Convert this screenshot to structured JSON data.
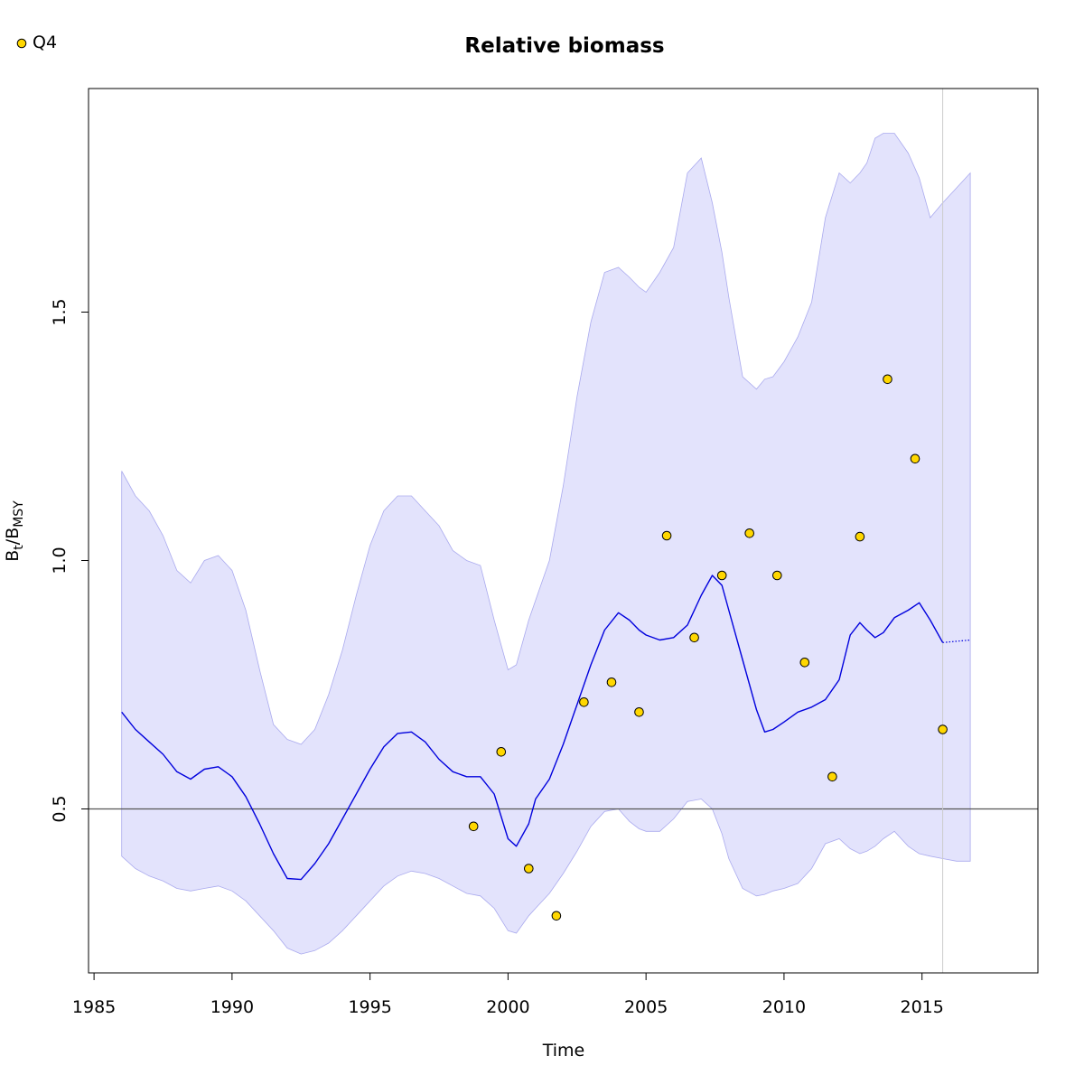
{
  "chart_data": {
    "type": "line",
    "title": "Relative biomass",
    "xlabel": "Time",
    "ylabel": {
      "main": "B",
      "sub1": "t",
      "sep": "/B",
      "sub2": "MSY"
    },
    "xlim": [
      1984.8,
      2019.2
    ],
    "ylim": [
      0.17,
      1.95
    ],
    "x_ticks": [
      1985,
      1990,
      1995,
      2000,
      2005,
      2010,
      2015
    ],
    "y_ticks": [
      0.5,
      1.0,
      1.5
    ],
    "y_tick_labels": [
      "0.5",
      "1.0",
      "1.5"
    ],
    "reference_line": 0.5,
    "forecast_start": 2015.75,
    "grid": false,
    "legend": {
      "position": "top-left",
      "entries": [
        "Q4"
      ]
    },
    "colors": {
      "line": "#0000dd",
      "band": "#e3e3fc",
      "band_edge": "#aaaaee",
      "points": "#ffd700",
      "ref_line": "#555555",
      "vline": "#cccccc"
    },
    "median": {
      "x": [
        1986.0,
        1986.5,
        1987.0,
        1987.5,
        1988.0,
        1988.5,
        1989.0,
        1989.5,
        1990.0,
        1990.5,
        1991.0,
        1991.5,
        1992.0,
        1992.5,
        1993.0,
        1993.5,
        1994.0,
        1994.5,
        1995.0,
        1995.5,
        1996.0,
        1996.5,
        1997.0,
        1997.5,
        1998.0,
        1998.5,
        1999.0,
        1999.5,
        2000.0,
        2000.3,
        2000.75,
        2001.0,
        2001.5,
        2002.0,
        2002.5,
        2003.0,
        2003.5,
        2004.0,
        2004.4,
        2004.75,
        2005.0,
        2005.5,
        2006.0,
        2006.5,
        2007.0,
        2007.4,
        2007.75,
        2008.0,
        2008.5,
        2009.0,
        2009.3,
        2009.6,
        2010.0,
        2010.5,
        2011.0,
        2011.5,
        2012.0,
        2012.4,
        2012.75,
        2013.0,
        2013.3,
        2013.6,
        2014.0,
        2014.5,
        2014.9,
        2015.3,
        2015.75
      ],
      "y": [
        0.695,
        0.66,
        0.635,
        0.61,
        0.575,
        0.56,
        0.58,
        0.585,
        0.565,
        0.525,
        0.47,
        0.41,
        0.36,
        0.358,
        0.39,
        0.43,
        0.48,
        0.53,
        0.58,
        0.625,
        0.652,
        0.655,
        0.635,
        0.6,
        0.575,
        0.565,
        0.565,
        0.53,
        0.44,
        0.425,
        0.47,
        0.52,
        0.56,
        0.63,
        0.71,
        0.79,
        0.86,
        0.895,
        0.88,
        0.86,
        0.85,
        0.84,
        0.845,
        0.87,
        0.93,
        0.97,
        0.95,
        0.9,
        0.8,
        0.7,
        0.655,
        0.66,
        0.675,
        0.695,
        0.705,
        0.72,
        0.76,
        0.85,
        0.875,
        0.86,
        0.845,
        0.855,
        0.885,
        0.9,
        0.915,
        0.88,
        0.835
      ]
    },
    "median_forecast": {
      "x": [
        2015.75,
        2016.75
      ],
      "y": [
        0.835,
        0.84
      ]
    },
    "ci_upper": {
      "x": [
        1986.0,
        1986.5,
        1987.0,
        1987.5,
        1988.0,
        1988.5,
        1989.0,
        1989.5,
        1990.0,
        1990.5,
        1991.0,
        1991.5,
        1992.0,
        1992.5,
        1993.0,
        1993.5,
        1994.0,
        1994.5,
        1995.0,
        1995.5,
        1996.0,
        1996.5,
        1997.0,
        1997.5,
        1998.0,
        1998.5,
        1999.0,
        1999.5,
        2000.0,
        2000.3,
        2000.75,
        2001.0,
        2001.5,
        2002.0,
        2002.5,
        2003.0,
        2003.5,
        2004.0,
        2004.4,
        2004.75,
        2005.0,
        2005.5,
        2006.0,
        2006.5,
        2007.0,
        2007.4,
        2007.75,
        2008.0,
        2008.5,
        2009.0,
        2009.3,
        2009.6,
        2010.0,
        2010.5,
        2011.0,
        2011.5,
        2012.0,
        2012.4,
        2012.75,
        2013.0,
        2013.3,
        2013.6,
        2014.0,
        2014.5,
        2014.9,
        2015.3,
        2015.75,
        2016.25,
        2016.75
      ],
      "y": [
        1.18,
        1.13,
        1.1,
        1.05,
        0.98,
        0.955,
        1.0,
        1.01,
        0.98,
        0.9,
        0.78,
        0.67,
        0.64,
        0.63,
        0.66,
        0.73,
        0.82,
        0.93,
        1.03,
        1.1,
        1.13,
        1.13,
        1.1,
        1.07,
        1.02,
        1.0,
        0.99,
        0.88,
        0.78,
        0.79,
        0.88,
        0.92,
        1.0,
        1.15,
        1.33,
        1.48,
        1.58,
        1.59,
        1.57,
        1.55,
        1.54,
        1.58,
        1.63,
        1.78,
        1.81,
        1.72,
        1.62,
        1.53,
        1.37,
        1.345,
        1.365,
        1.37,
        1.4,
        1.45,
        1.52,
        1.69,
        1.78,
        1.76,
        1.78,
        1.8,
        1.85,
        1.86,
        1.86,
        1.82,
        1.77,
        1.69,
        1.72,
        1.75,
        1.78
      ]
    },
    "ci_lower": {
      "x": [
        1986.0,
        1986.5,
        1987.0,
        1987.5,
        1988.0,
        1988.5,
        1989.0,
        1989.5,
        1990.0,
        1990.5,
        1991.0,
        1991.5,
        1992.0,
        1992.5,
        1993.0,
        1993.5,
        1994.0,
        1994.5,
        1995.0,
        1995.5,
        1996.0,
        1996.5,
        1997.0,
        1997.5,
        1998.0,
        1998.5,
        1999.0,
        1999.5,
        2000.0,
        2000.3,
        2000.75,
        2001.0,
        2001.5,
        2002.0,
        2002.5,
        2003.0,
        2003.5,
        2004.0,
        2004.4,
        2004.75,
        2005.0,
        2005.5,
        2006.0,
        2006.5,
        2007.0,
        2007.4,
        2007.75,
        2008.0,
        2008.5,
        2009.0,
        2009.3,
        2009.6,
        2010.0,
        2010.5,
        2011.0,
        2011.5,
        2012.0,
        2012.4,
        2012.75,
        2013.0,
        2013.3,
        2013.6,
        2014.0,
        2014.5,
        2014.9,
        2015.3,
        2015.75,
        2016.25,
        2016.75
      ],
      "y": [
        0.405,
        0.38,
        0.365,
        0.355,
        0.34,
        0.335,
        0.34,
        0.345,
        0.335,
        0.315,
        0.285,
        0.255,
        0.22,
        0.208,
        0.215,
        0.23,
        0.255,
        0.285,
        0.315,
        0.345,
        0.365,
        0.375,
        0.37,
        0.36,
        0.345,
        0.33,
        0.325,
        0.3,
        0.255,
        0.25,
        0.285,
        0.3,
        0.33,
        0.37,
        0.415,
        0.465,
        0.495,
        0.5,
        0.475,
        0.46,
        0.455,
        0.455,
        0.48,
        0.515,
        0.52,
        0.5,
        0.45,
        0.4,
        0.34,
        0.325,
        0.328,
        0.335,
        0.34,
        0.35,
        0.38,
        0.43,
        0.44,
        0.42,
        0.41,
        0.415,
        0.425,
        0.44,
        0.455,
        0.425,
        0.41,
        0.405,
        0.4,
        0.395,
        0.395
      ]
    },
    "observations": {
      "name": "Q4",
      "x": [
        1998.75,
        1999.75,
        2000.75,
        2001.75,
        2002.75,
        2003.75,
        2004.75,
        2005.75,
        2006.75,
        2007.75,
        2008.75,
        2009.75,
        2010.75,
        2011.75,
        2012.75,
        2013.75,
        2014.75,
        2015.75
      ],
      "y": [
        0.465,
        0.615,
        0.38,
        0.285,
        0.715,
        0.755,
        0.695,
        1.05,
        0.845,
        0.97,
        1.055,
        0.97,
        0.795,
        0.565,
        1.048,
        1.365,
        1.205,
        0.66
      ]
    }
  }
}
